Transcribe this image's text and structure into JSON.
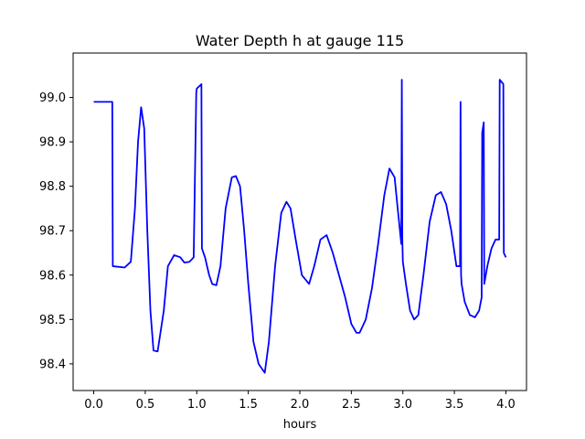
{
  "chart_data": {
    "type": "line",
    "title": "Water Depth h at gauge 115",
    "xlabel": "hours",
    "ylabel": "",
    "xlim": [
      -0.2,
      4.2
    ],
    "ylim": [
      98.34,
      99.1
    ],
    "xticks": [
      "0.0",
      "0.5",
      "1.0",
      "1.5",
      "2.0",
      "2.5",
      "3.0",
      "3.5",
      "4.0"
    ],
    "yticks": [
      "98.4",
      "98.5",
      "98.6",
      "98.7",
      "98.8",
      "98.9",
      "99.0"
    ],
    "grid": false,
    "line_color": "#0000ff",
    "series": [
      {
        "name": "",
        "x": [
          0.0,
          0.18,
          0.185,
          0.3,
          0.36,
          0.4,
          0.43,
          0.46,
          0.49,
          0.52,
          0.55,
          0.58,
          0.62,
          0.68,
          0.72,
          0.78,
          0.84,
          0.88,
          0.93,
          0.97,
          0.995,
          1.0,
          1.045,
          1.05,
          1.08,
          1.12,
          1.15,
          1.19,
          1.23,
          1.28,
          1.34,
          1.38,
          1.42,
          1.46,
          1.5,
          1.55,
          1.6,
          1.66,
          1.7,
          1.76,
          1.82,
          1.87,
          1.91,
          1.96,
          2.02,
          2.09,
          2.14,
          2.2,
          2.26,
          2.32,
          2.38,
          2.44,
          2.5,
          2.55,
          2.58,
          2.64,
          2.7,
          2.76,
          2.82,
          2.87,
          2.92,
          2.95,
          2.985,
          2.99,
          2.995,
          3.0,
          3.03,
          3.07,
          3.11,
          3.15,
          3.2,
          3.26,
          3.32,
          3.37,
          3.42,
          3.47,
          3.52,
          3.555,
          3.56,
          3.565,
          3.57,
          3.6,
          3.65,
          3.7,
          3.74,
          3.765,
          3.77,
          3.785,
          3.79,
          3.82,
          3.86,
          3.9,
          3.935,
          3.94,
          3.975,
          3.98,
          4.0
        ],
        "y": [
          98.99,
          98.99,
          98.62,
          98.617,
          98.63,
          98.75,
          98.9,
          98.978,
          98.93,
          98.7,
          98.52,
          98.43,
          98.428,
          98.52,
          98.62,
          98.645,
          98.64,
          98.628,
          98.63,
          98.64,
          99.01,
          99.02,
          99.03,
          98.66,
          98.64,
          98.6,
          98.58,
          98.577,
          98.62,
          98.75,
          98.82,
          98.823,
          98.8,
          98.7,
          98.58,
          98.45,
          98.4,
          98.38,
          98.45,
          98.62,
          98.74,
          98.765,
          98.75,
          98.68,
          98.6,
          98.58,
          98.62,
          98.68,
          98.69,
          98.65,
          98.6,
          98.55,
          98.49,
          98.47,
          98.47,
          98.5,
          98.57,
          98.67,
          98.78,
          98.84,
          98.82,
          98.75,
          98.67,
          99.04,
          98.68,
          98.63,
          98.58,
          98.52,
          98.5,
          98.51,
          98.6,
          98.72,
          98.78,
          98.787,
          98.76,
          98.7,
          98.62,
          98.62,
          98.99,
          98.6,
          98.58,
          98.54,
          98.51,
          98.505,
          98.52,
          98.55,
          98.92,
          98.944,
          98.58,
          98.62,
          98.66,
          98.68,
          98.68,
          99.04,
          99.03,
          98.65,
          98.64
        ]
      }
    ]
  }
}
